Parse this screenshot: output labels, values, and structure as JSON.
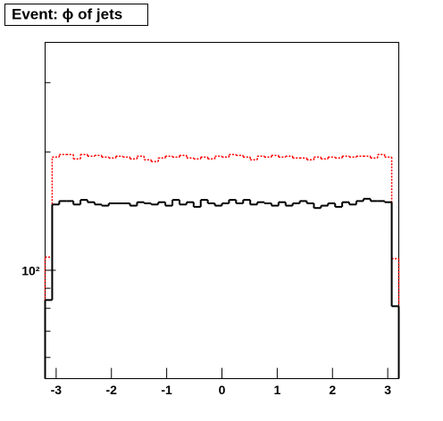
{
  "chart_data": {
    "type": "histogram",
    "title": "Event: ϕ of jets",
    "bins": [
      -3.2,
      -3.072,
      -2.944,
      -2.816,
      -2.688,
      -2.56,
      -2.432,
      -2.304,
      -2.176,
      -2.048,
      -1.92,
      -1.792,
      -1.664,
      -1.536,
      -1.408,
      -1.28,
      -1.152,
      -1.024,
      -0.896,
      -0.768,
      -0.64,
      -0.512,
      -0.384,
      -0.256,
      -0.128,
      0,
      0.128,
      0.256,
      0.384,
      0.512,
      0.64,
      0.768,
      0.896,
      1.024,
      1.152,
      1.28,
      1.408,
      1.536,
      1.664,
      1.792,
      1.92,
      2.048,
      2.176,
      2.304,
      2.432,
      2.56,
      2.688,
      2.816,
      2.944,
      3.072,
      3.2
    ],
    "series": [
      {
        "color": "#000000",
        "style": "solid",
        "values": [
          84,
          147,
          150,
          150,
          147,
          151,
          149,
          147,
          146,
          148,
          148,
          148,
          146,
          149,
          148,
          147,
          149,
          146,
          151,
          147,
          149,
          145,
          151,
          148,
          146,
          148,
          151,
          148,
          151,
          147,
          149,
          148,
          146,
          149,
          146,
          148,
          150,
          148,
          144,
          146,
          148,
          145,
          149,
          147,
          150,
          152,
          150,
          150,
          149,
          81
        ]
      },
      {
        "color": "#ff0000",
        "style": "dotted",
        "values": [
          108,
          194,
          197,
          197,
          192,
          197,
          195,
          196,
          194,
          193,
          195,
          194,
          192,
          195,
          191,
          189,
          193,
          195,
          194,
          196,
          193,
          192,
          194,
          192,
          195,
          194,
          197,
          196,
          194,
          191,
          195,
          194,
          196,
          194,
          195,
          193,
          193,
          191,
          194,
          192,
          194,
          193,
          195,
          194,
          195,
          195,
          193,
          197,
          194,
          107
        ]
      }
    ],
    "xlim": [
      -3.2,
      3.2
    ],
    "xticks": [
      -3,
      -2,
      -1,
      0,
      1,
      2,
      3
    ],
    "ylim": [
      53,
      380
    ],
    "log_y": true,
    "yticks": [
      {
        "value": 100,
        "label": "10²"
      }
    ],
    "yminor_ticks": [
      60,
      70,
      80,
      90,
      200,
      300
    ]
  }
}
